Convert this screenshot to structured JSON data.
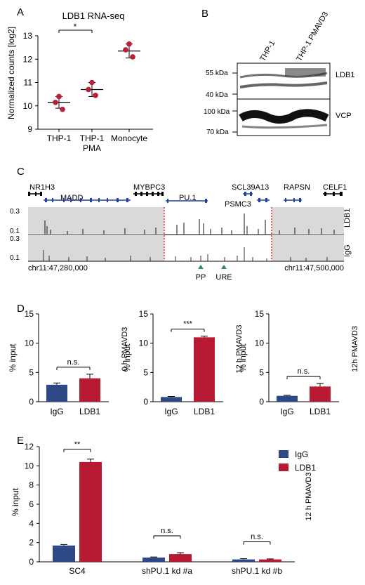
{
  "panels": {
    "A": {
      "letter": "A",
      "title": "LDB1 RNA-seq",
      "ylabel": "Normalized counts [log2]",
      "yticks": [
        9,
        10,
        11,
        12,
        13
      ],
      "xticks": [
        "THP-1",
        "THP-1\nPMA",
        "Monocyte"
      ],
      "significance": "*"
    },
    "B": {
      "letter": "B",
      "lanes": [
        "THP-1",
        "THP-1 PMAVD3"
      ],
      "blots": [
        {
          "label": "LDB1",
          "markers": [
            "55 kDa",
            "40 kDa"
          ]
        },
        {
          "label": "VCP",
          "markers": [
            "100 kDa",
            "70 kDa"
          ]
        }
      ]
    },
    "C": {
      "letter": "C",
      "genes": [
        "NR1H3",
        "MADD",
        "MYBPC3",
        "PU.1",
        "SCL39A13",
        "PSMC3",
        "RAPSN",
        "CELF1"
      ],
      "tracks": [
        {
          "label": "LDB1",
          "ticks": [
            "0.3",
            "0.1"
          ]
        },
        {
          "label": "IgG",
          "ticks": [
            "0.3",
            "0.1"
          ]
        }
      ],
      "coord_left": "chr11:47,280,000",
      "coord_right": "chr11:47,500,000",
      "sites": [
        "PP",
        "URE"
      ]
    },
    "D": {
      "letter": "D",
      "ylabel": "% input",
      "yticks": [
        0,
        5,
        10,
        15
      ],
      "categories": [
        "IgG",
        "LDB1"
      ],
      "subplots": [
        {
          "side_label": "0 h PMAVD3",
          "significance": "n.s."
        },
        {
          "side_label": "12 h PMAVD3",
          "significance": "***"
        },
        {
          "side_label": "12h PMAVD3",
          "significance": "n.s."
        }
      ]
    },
    "E": {
      "letter": "E",
      "ylabel": "% input",
      "yticks": [
        0,
        2,
        4,
        6,
        8,
        10,
        12
      ],
      "categories": [
        "SC4",
        "shPU.1 kd #a",
        "shPU.1 kd #b"
      ],
      "side_label": "12 h PMAVD3",
      "legend": [
        "IgG",
        "LDB1"
      ],
      "significance": [
        "**",
        "n.s.",
        "n.s."
      ]
    }
  },
  "colors": {
    "igg": "#2e4a86",
    "ldb1": "#b81a34",
    "dot": "#b8203a",
    "track_bg": "#d9d9d9",
    "region_line": "#e0302f",
    "site_marker": "#2e8b57",
    "gene_left": "#000000",
    "gene_mid": "#1f3f9f"
  },
  "chart_data": [
    {
      "type": "scatter",
      "panel": "A",
      "title": "LDB1 RNA-seq",
      "ylabel": "Normalized counts [log2]",
      "ylim": [
        9,
        13
      ],
      "categories": [
        "THP-1",
        "THP-1 PMA",
        "Monocyte"
      ],
      "points": [
        [
          10.4,
          10.15,
          9.85
        ],
        [
          11.0,
          10.7,
          10.45
        ],
        [
          12.65,
          12.4,
          12.1
        ]
      ],
      "means": [
        10.15,
        10.7,
        12.35
      ],
      "sd": [
        0.25,
        0.3,
        0.3
      ]
    },
    {
      "type": "bar",
      "panel": "D",
      "ylabel": "% input",
      "ylim": [
        0,
        15
      ],
      "categories": [
        "IgG",
        "LDB1"
      ],
      "series": [
        {
          "name": "0 h PMAVD3",
          "values": [
            2.9,
            4.0
          ],
          "errors": [
            0.3,
            0.7
          ]
        },
        {
          "name": "12 h PMAVD3",
          "values": [
            0.8,
            11.0
          ],
          "errors": [
            0.1,
            0.2
          ]
        },
        {
          "name": "12h PMAVD3",
          "values": [
            1.0,
            2.6
          ],
          "errors": [
            0.1,
            0.5
          ]
        }
      ]
    },
    {
      "type": "bar",
      "panel": "E",
      "ylabel": "% input",
      "ylim": [
        0,
        12
      ],
      "categories": [
        "SC4",
        "shPU.1 kd #a",
        "shPU.1 kd #b"
      ],
      "series": [
        {
          "name": "IgG",
          "values": [
            1.7,
            0.45,
            0.25
          ],
          "errors": [
            0.1,
            0.05,
            0.08
          ]
        },
        {
          "name": "LDB1",
          "values": [
            10.4,
            0.8,
            0.25
          ],
          "errors": [
            0.3,
            0.15,
            0.05
          ]
        }
      ],
      "legend": "top-right"
    }
  ]
}
